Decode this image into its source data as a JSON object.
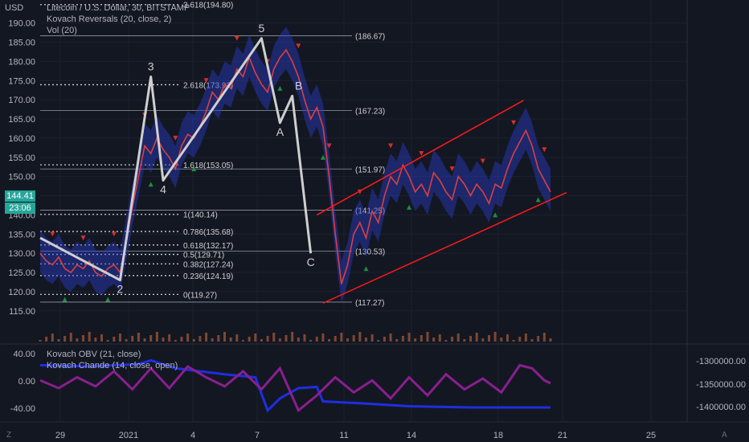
{
  "header": {
    "currency": "USD",
    "title": "Litecoin / U.S. Dollar, 30, BITSTAMP",
    "indicator1": "Kovach Reversals (20, close, 2)",
    "indicator2": "Vol (20)"
  },
  "price_tags": {
    "last_price": "144.41",
    "countdown": "23:06",
    "color": "#26a69a"
  },
  "lower_panel": {
    "indicator1": "Kovach OBV (21, close)",
    "indicator2": "Kovach Chande (14, close, open)"
  },
  "icons": {
    "left_corner": "Z",
    "right_corner": "A"
  },
  "colors": {
    "background": "#131722",
    "grid": "#1e2230",
    "text": "#b2b5be",
    "wave": "#cfcfcf",
    "channel": "#ff1a1a",
    "price_line": "#d94040",
    "band": "#2a3cc7",
    "obv": "#1f2ee0",
    "chande": "#8a1f8f",
    "up_marker": "#1e8e3e",
    "down_marker": "#d32f2f",
    "volume": "#c8693a"
  },
  "chart_data": {
    "type": "line",
    "title": "Litecoin / U.S. Dollar, 30, BITSTAMP",
    "y_axis_right": {
      "ticks": [
        "115.00",
        "120.00",
        "125.00",
        "130.00",
        "135.00",
        "140.00",
        "145.00",
        "150.00",
        "155.00",
        "160.00",
        "165.00",
        "170.00",
        "175.00",
        "180.00",
        "185.00",
        "190.00"
      ],
      "range": [
        107,
        196
      ]
    },
    "x_axis": {
      "ticks": [
        "29",
        "2021",
        "4",
        "7",
        "11",
        "14",
        "18",
        "21",
        "25"
      ]
    },
    "price_path": [
      [
        0,
        130
      ],
      [
        1,
        128
      ],
      [
        2,
        127
      ],
      [
        3,
        129
      ],
      [
        4,
        126
      ],
      [
        5,
        125
      ],
      [
        6,
        127
      ],
      [
        7,
        126
      ],
      [
        8,
        128
      ],
      [
        9,
        125
      ],
      [
        10,
        124
      ],
      [
        11,
        126
      ],
      [
        12,
        127
      ],
      [
        13,
        125
      ],
      [
        14,
        133
      ],
      [
        15,
        142
      ],
      [
        16,
        150
      ],
      [
        17,
        158
      ],
      [
        18,
        156
      ],
      [
        19,
        160
      ],
      [
        20,
        157
      ],
      [
        21,
        155
      ],
      [
        22,
        152
      ],
      [
        23,
        158
      ],
      [
        24,
        161
      ],
      [
        25,
        160
      ],
      [
        26,
        163
      ],
      [
        27,
        167
      ],
      [
        28,
        172
      ],
      [
        29,
        170
      ],
      [
        30,
        174
      ],
      [
        31,
        173
      ],
      [
        32,
        178
      ],
      [
        33,
        176
      ],
      [
        34,
        181
      ],
      [
        35,
        177
      ],
      [
        36,
        174
      ],
      [
        37,
        172
      ],
      [
        38,
        178
      ],
      [
        39,
        181
      ],
      [
        40,
        183
      ],
      [
        41,
        180
      ],
      [
        42,
        176
      ],
      [
        43,
        170
      ],
      [
        44,
        165
      ],
      [
        45,
        168
      ],
      [
        46,
        163
      ],
      [
        47,
        150
      ],
      [
        48,
        135
      ],
      [
        49,
        122
      ],
      [
        50,
        127
      ],
      [
        51,
        135
      ],
      [
        52,
        138
      ],
      [
        53,
        134
      ],
      [
        54,
        141
      ],
      [
        55,
        138
      ],
      [
        56,
        145
      ],
      [
        57,
        150
      ],
      [
        58,
        148
      ],
      [
        59,
        153
      ],
      [
        60,
        150
      ],
      [
        61,
        146
      ],
      [
        62,
        148
      ],
      [
        63,
        145
      ],
      [
        64,
        151
      ],
      [
        65,
        149
      ],
      [
        66,
        146
      ],
      [
        67,
        144
      ],
      [
        68,
        150
      ],
      [
        69,
        148
      ],
      [
        70,
        145
      ],
      [
        71,
        148
      ],
      [
        72,
        146
      ],
      [
        73,
        143
      ],
      [
        74,
        148
      ],
      [
        75,
        147
      ],
      [
        76,
        152
      ],
      [
        77,
        156
      ],
      [
        78,
        159
      ],
      [
        79,
        162
      ],
      [
        80,
        158
      ],
      [
        81,
        152
      ],
      [
        82,
        149
      ],
      [
        83,
        146
      ]
    ],
    "elliott_wave": {
      "points": [
        [
          0,
          134
        ],
        [
          13,
          123
        ],
        [
          18,
          176
        ],
        [
          20,
          149
        ],
        [
          36,
          186
        ],
        [
          39,
          164
        ],
        [
          41,
          171
        ],
        [
          44,
          130
        ]
      ],
      "labels": [
        "2",
        "3",
        "4",
        "5",
        "A",
        "B",
        "C"
      ]
    },
    "fib_levels": [
      {
        "label": "3.618(194.80)",
        "value": 194.8
      },
      {
        "label": "2.618(173.92)",
        "value": 173.92
      },
      {
        "label": "1.618(153.05)",
        "value": 153.05
      },
      {
        "label": "1(140.14)",
        "value": 140.14
      },
      {
        "label": "0.786(135.68)",
        "value": 135.68
      },
      {
        "label": "0.618(132.17)",
        "value": 132.17
      },
      {
        "label": "0.5(129.71)",
        "value": 129.71
      },
      {
        "label": "0.382(127.24)",
        "value": 127.24
      },
      {
        "label": "0.236(124.19)",
        "value": 124.19
      },
      {
        "label": "0(119.27)",
        "value": 119.27
      }
    ],
    "horizontal_levels": [
      {
        "label": "(186.67)",
        "value": 186.67
      },
      {
        "label": "(167.23)",
        "value": 167.23
      },
      {
        "label": "(151.97)",
        "value": 151.97
      },
      {
        "label": "(141.25)",
        "value": 141.25
      },
      {
        "label": "(130.53)",
        "value": 130.53
      },
      {
        "label": "(117.27)",
        "value": 117.27
      }
    ],
    "channel": {
      "upper": [
        [
          45,
          140
        ],
        [
          76,
          169
        ]
      ],
      "lower": [
        [
          46,
          117
        ],
        [
          83,
          145
        ]
      ]
    },
    "lower_y_left_ticks": [
      "40.00",
      "0.00",
      "-40.00"
    ],
    "lower_y_right_ticks": [
      "-1300000.00",
      "-1350000.00",
      "-1400000.00"
    ],
    "obv_path": [
      [
        0,
        30
      ],
      [
        8,
        28
      ],
      [
        16,
        32
      ],
      [
        18,
        38
      ],
      [
        22,
        25
      ],
      [
        30,
        15
      ],
      [
        35,
        10
      ],
      [
        37,
        -45
      ],
      [
        39,
        -25
      ],
      [
        42,
        -8
      ],
      [
        45,
        -6
      ],
      [
        46,
        -30
      ],
      [
        52,
        -33
      ],
      [
        60,
        -38
      ],
      [
        70,
        -40
      ],
      [
        80,
        -40
      ],
      [
        83,
        -40
      ]
    ],
    "chande_path": [
      [
        0,
        5
      ],
      [
        3,
        -8
      ],
      [
        6,
        10
      ],
      [
        9,
        -5
      ],
      [
        12,
        20
      ],
      [
        15,
        -10
      ],
      [
        18,
        25
      ],
      [
        21,
        -8
      ],
      [
        24,
        28
      ],
      [
        27,
        10
      ],
      [
        30,
        -5
      ],
      [
        33,
        20
      ],
      [
        36,
        -10
      ],
      [
        39,
        25
      ],
      [
        42,
        -45
      ],
      [
        45,
        -20
      ],
      [
        48,
        10
      ],
      [
        51,
        -15
      ],
      [
        54,
        5
      ],
      [
        57,
        -25
      ],
      [
        60,
        10
      ],
      [
        63,
        -20
      ],
      [
        66,
        15
      ],
      [
        69,
        -10
      ],
      [
        72,
        8
      ],
      [
        75,
        -15
      ],
      [
        78,
        30
      ],
      [
        80,
        25
      ],
      [
        82,
        5
      ],
      [
        83,
        0
      ]
    ]
  }
}
